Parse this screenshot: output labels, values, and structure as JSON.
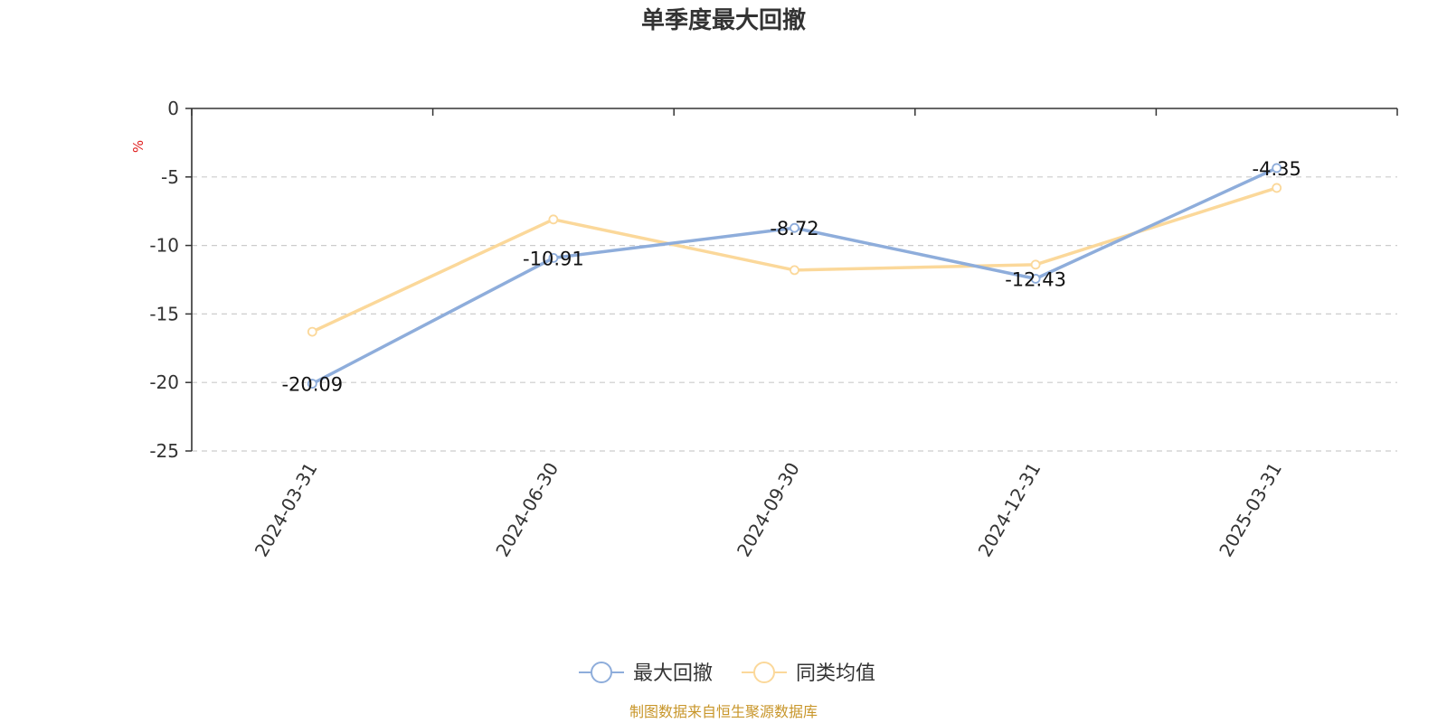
{
  "chart_data": {
    "type": "line",
    "title": "单季度最大回撤",
    "ylabel": "%",
    "categories": [
      "2024-03-31",
      "2024-06-30",
      "2024-09-30",
      "2024-12-31",
      "2025-03-31"
    ],
    "ylim": [
      -25,
      0
    ],
    "yticks": [
      0,
      -5,
      -10,
      -15,
      -20,
      -25
    ],
    "grid": true,
    "legend_position": "bottom-center",
    "series": [
      {
        "name": "最大回撤",
        "values": [
          -20.09,
          -10.91,
          -8.72,
          -12.43,
          -4.35
        ],
        "labels": [
          "-20.09",
          "-10.91",
          "-8.72",
          "-12.43",
          "-4.35"
        ],
        "color": "#8eaddb"
      },
      {
        "name": "同类均值",
        "values": [
          -16.3,
          -8.1,
          -11.8,
          -11.4,
          -5.8
        ],
        "color": "#fbd89a"
      }
    ],
    "source_note": "制图数据来自恒生聚源数据库"
  },
  "colors": {
    "unit_label": "#e02020",
    "source_note": "#c8962a",
    "grid": "#cccccc",
    "axis": "#333333"
  }
}
